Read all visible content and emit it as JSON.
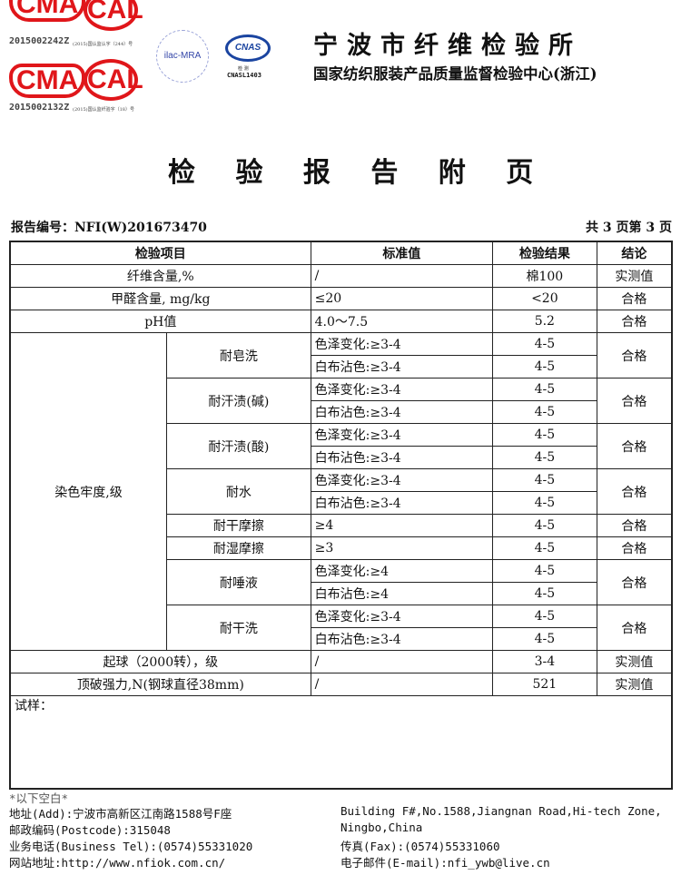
{
  "logos": {
    "cma_code_1": "2015002242Z",
    "cal_code_1": "(2015)国认监认字（244）号",
    "cma_code_2": "2015002132Z",
    "cal_code_2": "(2015)国认监纤验字（18）号",
    "cma": "CMA",
    "cal": "CAL",
    "ilac": "ilac-MRA",
    "cnas": "CNAS",
    "cnas_sub": "检 测",
    "cnas_code": "CNASL1403"
  },
  "header": {
    "org_name": "宁波市纤维检验所",
    "org_sub": "国家纺织服装产品质量监督检验中心(浙江)",
    "title": "检 验 报 告 附 页"
  },
  "report": {
    "number": "报告编号：NFI(W)201673470",
    "pages": "共 3 页第 3 页"
  },
  "table": {
    "headers": [
      "检验项目",
      "标准值",
      "检验结果",
      "结论"
    ],
    "rows": [
      {
        "item": "纤维含量,%",
        "std": "/",
        "result": "棉100",
        "concl": "实测值"
      },
      {
        "item": "甲醛含量, mg/kg",
        "std": "≤20",
        "result": "<20",
        "concl": "合格"
      },
      {
        "item": "pH值",
        "std": "4.0～7.5",
        "result": "5.2",
        "concl": "合格"
      }
    ],
    "colorfastness": {
      "label": "染色牢度,级",
      "groups": [
        {
          "name": "耐皂洗",
          "lines": [
            {
              "std": "色泽变化:≥3-4",
              "result": "4-5"
            },
            {
              "std": "白布沾色:≥3-4",
              "result": "4-5"
            }
          ],
          "concl": "合格"
        },
        {
          "name": "耐汗渍(碱)",
          "lines": [
            {
              "std": "色泽变化:≥3-4",
              "result": "4-5"
            },
            {
              "std": "白布沾色:≥3-4",
              "result": "4-5"
            }
          ],
          "concl": "合格"
        },
        {
          "name": "耐汗渍(酸)",
          "lines": [
            {
              "std": "色泽变化:≥3-4",
              "result": "4-5"
            },
            {
              "std": "白布沾色:≥3-4",
              "result": "4-5"
            }
          ],
          "concl": "合格"
        },
        {
          "name": "耐水",
          "lines": [
            {
              "std": "色泽变化:≥3-4",
              "result": "4-5"
            },
            {
              "std": "白布沾色:≥3-4",
              "result": "4-5"
            }
          ],
          "concl": "合格"
        },
        {
          "name": "耐干摩擦",
          "lines": [
            {
              "std": "≥4",
              "result": "4-5"
            }
          ],
          "concl": "合格"
        },
        {
          "name": "耐湿摩擦",
          "lines": [
            {
              "std": "≥3",
              "result": "4-5"
            }
          ],
          "concl": "合格"
        },
        {
          "name": "耐唾液",
          "lines": [
            {
              "std": "色泽变化:≥4",
              "result": "4-5"
            },
            {
              "std": "白布沾色:≥4",
              "result": "4-5"
            }
          ],
          "concl": "合格"
        },
        {
          "name": "耐干洗",
          "lines": [
            {
              "std": "色泽变化:≥3-4",
              "result": "4-5"
            },
            {
              "std": "白布沾色:≥3-4",
              "result": "4-5"
            }
          ],
          "concl": "合格"
        }
      ]
    },
    "tail_rows": [
      {
        "item": "起球（2000转），级",
        "std": "/",
        "result": "3-4",
        "concl": "实测值"
      },
      {
        "item": "顶破强力,N(钢球直径38mm)",
        "std": "/",
        "result": "521",
        "concl": "实测值"
      }
    ],
    "sample_label": "试样："
  },
  "footer": {
    "blank": "*以下空白*",
    "addr_cn": "地址(Add):宁波市高新区江南路1588号F座",
    "addr_en1": "Building F#,No.1588,Jiangnan Road,Hi-tech Zone,",
    "postcode": "邮政编码(Postcode):315048",
    "addr_en2": "Ningbo,China",
    "tel": "业务电话(Business Tel):(0574)55331020",
    "fax": "传真(Fax):(0574)55331060",
    "web": "网站地址:http://www.nfiok.com.cn/",
    "email": "电子邮件(E-mail):nfi_ywb@live.cn"
  }
}
